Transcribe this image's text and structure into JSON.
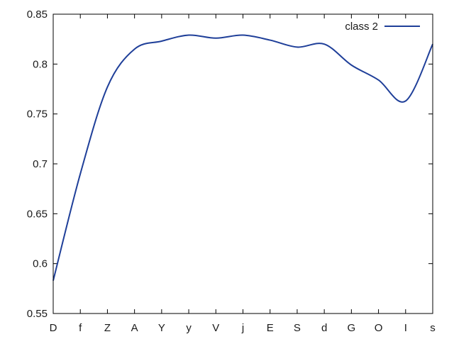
{
  "chart_data": {
    "type": "line",
    "title": "",
    "xlabel": "",
    "ylabel": "",
    "categories": [
      "D",
      "f",
      "Z",
      "A",
      "Y",
      "y",
      "V",
      "j",
      "E",
      "S",
      "d",
      "G",
      "O",
      "I",
      "s"
    ],
    "ylim": [
      0.55,
      0.85
    ],
    "yticks": [
      0.55,
      0.6,
      0.65,
      0.7,
      0.75,
      0.8,
      0.85
    ],
    "ytick_labels": [
      "0.55",
      "0.6",
      "0.65",
      "0.7",
      "0.75",
      "0.8",
      "0.85"
    ],
    "grid": false,
    "legend_position": "top-right",
    "series": [
      {
        "name": "class 2",
        "color": "#1f3f99",
        "values": [
          0.583,
          0.69,
          0.777,
          0.815,
          0.823,
          0.829,
          0.826,
          0.829,
          0.824,
          0.817,
          0.82,
          0.799,
          0.784,
          0.763,
          0.82
        ]
      }
    ]
  }
}
